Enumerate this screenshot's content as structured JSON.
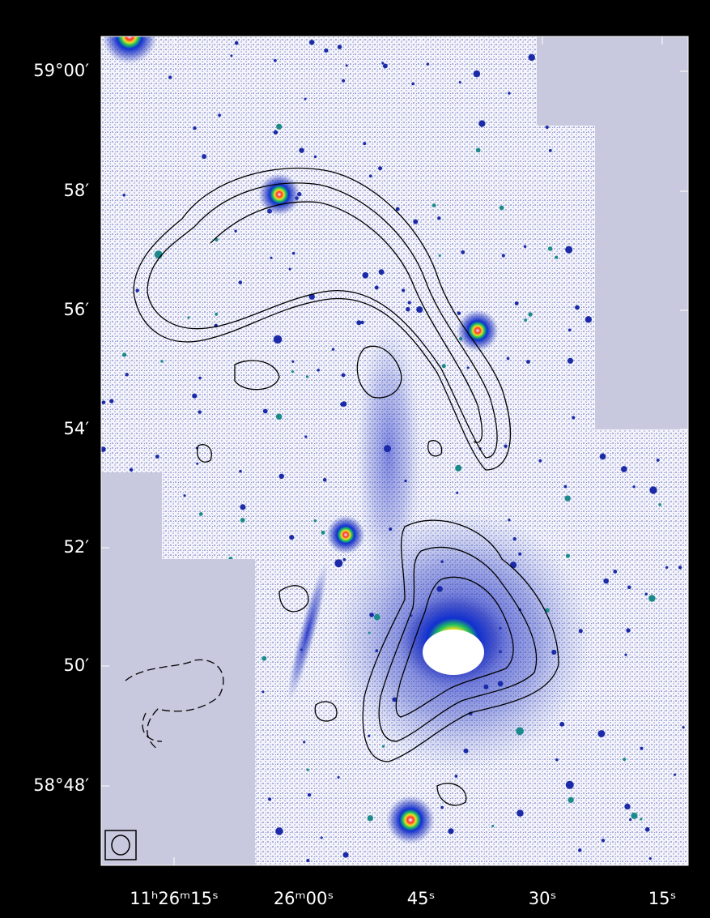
{
  "axes": {
    "y_labels": [
      "59°00′",
      "58′",
      "56′",
      "54′",
      "52′",
      "50′",
      "58°48′"
    ],
    "x_labels": [
      "11ʰ26ᵐ15ˢ",
      "26ᵐ00ˢ",
      "45ˢ",
      "30ˢ",
      "15ˢ"
    ]
  }
}
